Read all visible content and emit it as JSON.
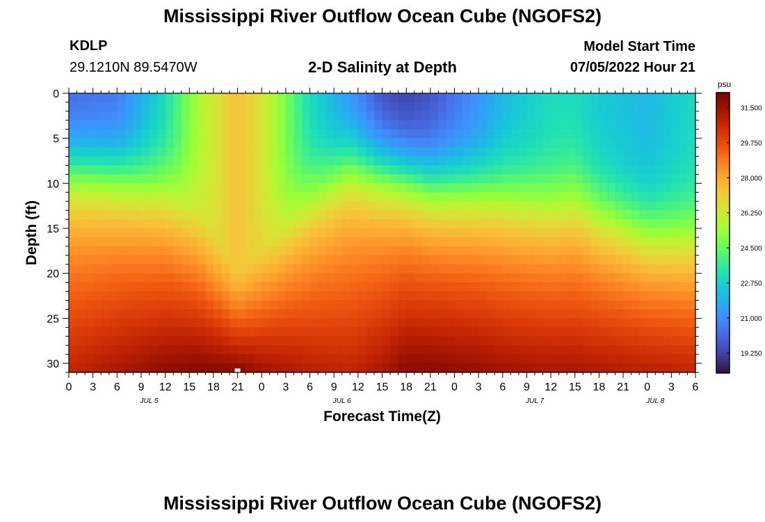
{
  "header": {
    "title": "Mississippi River Outflow Ocean Cube (NGOFS2)",
    "station_id": "KDLP",
    "station_coords": "29.1210N  89.5470W",
    "plot_title": "2-D Salinity at Depth",
    "model_start_label": "Model Start Time",
    "model_start_value": "07/05/2022 Hour 21"
  },
  "footer": {
    "repeated_title": "Mississippi River Outflow Ocean Cube (NGOFS2)"
  },
  "chart_data": {
    "type": "heatmap",
    "ylabel": "Depth (ft)",
    "xlabel": "Forecast Time(Z)",
    "ylim": [
      31,
      0
    ],
    "y_ticks": [
      0,
      5,
      10,
      15,
      20,
      25,
      30
    ],
    "x_ticks": [
      "0",
      "3",
      "6",
      "9",
      "12",
      "15",
      "18",
      "21",
      "0",
      "3",
      "6",
      "9",
      "12",
      "15",
      "18",
      "21",
      "0",
      "3",
      "6",
      "9",
      "12",
      "15",
      "18",
      "21",
      "0",
      "3",
      "6"
    ],
    "x_range_hours": [
      0,
      78
    ],
    "date_labels": [
      {
        "label": "JUL 5",
        "hour": 10
      },
      {
        "label": "JUL 6",
        "hour": 34
      },
      {
        "label": "JUL 7",
        "hour": 58
      },
      {
        "label": "JUL 8",
        "hour": 73
      }
    ],
    "colorbar": {
      "unit": "psu",
      "range": [
        18.25,
        32.25
      ],
      "ticks": [
        "31.500",
        "29.750",
        "28.000",
        "26.250",
        "24.500",
        "22.750",
        "21.000",
        "19.250"
      ],
      "colors": [
        "#30123b",
        "#3e378f",
        "#4454c4",
        "#4672e8",
        "#3f8ffe",
        "#26acf0",
        "#18c8d6",
        "#1fdeb8",
        "#3fef8c",
        "#6cfb5c",
        "#97fe39",
        "#c0f133",
        "#ddde37",
        "#f5c539",
        "#fea730",
        "#fb8022",
        "#ef5911",
        "#db3a08",
        "#be2203",
        "#9a1201",
        "#7a0403"
      ]
    },
    "salinity_profile": {
      "time_hours": [
        0,
        6,
        12,
        16,
        21,
        24,
        30,
        35,
        39,
        42,
        45,
        51,
        54,
        57,
        60,
        63,
        66,
        72,
        78
      ],
      "surface_psu": [
        20.0,
        20.3,
        23.0,
        25.5,
        27.5,
        26.5,
        23.0,
        21.0,
        19.3,
        19.0,
        19.5,
        21.0,
        22.0,
        22.5,
        23.0,
        23.0,
        22.5,
        22.0,
        23.0
      ],
      "halocline_ft": [
        8.0,
        8.5,
        10.0,
        13.0,
        20.0,
        17.0,
        11.0,
        7.5,
        8.0,
        8.5,
        9.5,
        10.0,
        10.5,
        11.0,
        11.5,
        11.0,
        12.5,
        14.5,
        15.0
      ],
      "bottom_psu": [
        30.8,
        31.3,
        31.8,
        32.0,
        32.0,
        31.5,
        31.0,
        30.8,
        31.3,
        31.9,
        31.9,
        31.7,
        31.5,
        31.4,
        31.3,
        31.3,
        31.2,
        31.0,
        30.8
      ]
    },
    "marker": {
      "hour": 21,
      "depth_ft": 30.8,
      "color": "#ffffff"
    }
  }
}
